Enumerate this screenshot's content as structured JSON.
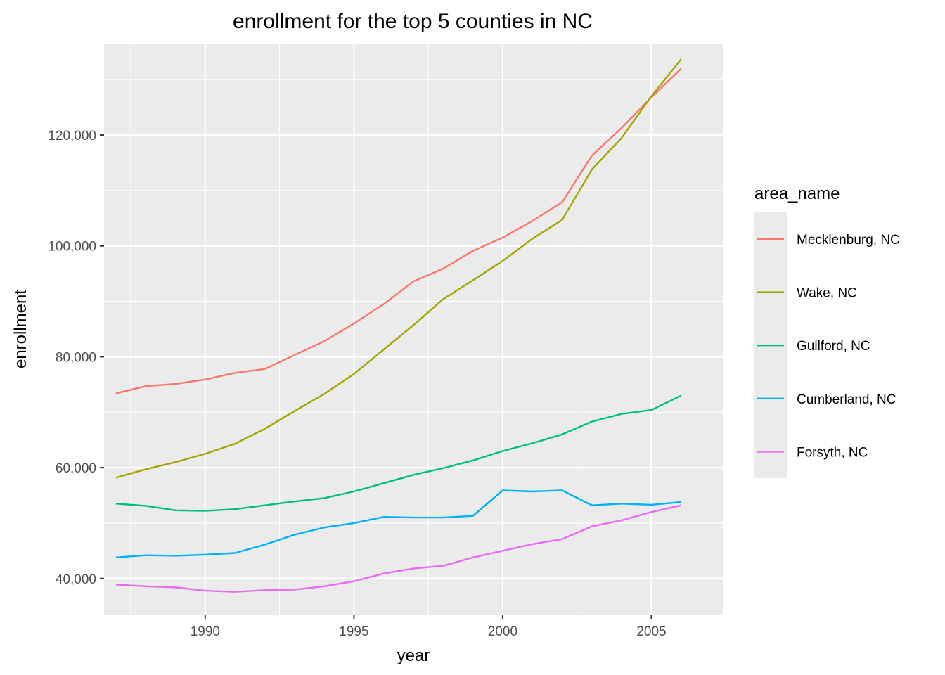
{
  "chart_data": {
    "type": "line",
    "title": "enrollment for the top 5 counties in NC",
    "xlabel": "year",
    "ylabel": "enrollment",
    "xlim": [
      1986.6,
      2007.4
    ],
    "ylim": [
      33500,
      136500
    ],
    "x_ticks": [
      1990,
      1995,
      2000,
      2005
    ],
    "x_tick_labels": [
      "1990",
      "1995",
      "2000",
      "2005"
    ],
    "y_ticks": [
      40000,
      60000,
      80000,
      100000,
      120000
    ],
    "y_tick_labels": [
      "40,000",
      "60,000",
      "80,000",
      "100,000",
      "120,000"
    ],
    "grid": true,
    "legend": {
      "title": "area_name",
      "position": "right"
    },
    "x": [
      1987,
      1988,
      1989,
      1990,
      1991,
      1992,
      1993,
      1994,
      1995,
      1996,
      1997,
      1998,
      1999,
      2000,
      2001,
      2002,
      2003,
      2004,
      2005,
      2006
    ],
    "series": [
      {
        "name": "Mecklenburg, NC",
        "color": "#F8766D",
        "values": [
          73400,
          74700,
          75100,
          75900,
          77100,
          77800,
          80300,
          82800,
          86000,
          89500,
          93600,
          95900,
          99100,
          101500,
          104500,
          107900,
          116300,
          121300,
          126800,
          132000
        ]
      },
      {
        "name": "Wake, NC",
        "color": "#A3A500",
        "values": [
          58200,
          59700,
          61000,
          62500,
          64300,
          67000,
          70200,
          73300,
          76900,
          81300,
          85700,
          90400,
          93800,
          97300,
          101300,
          104700,
          113800,
          119500,
          127000,
          133700
        ]
      },
      {
        "name": "Guilford, NC",
        "color": "#00BF7D",
        "values": [
          53500,
          53100,
          52300,
          52200,
          52500,
          53200,
          53900,
          54500,
          55700,
          57200,
          58700,
          59900,
          61300,
          63000,
          64400,
          66000,
          68300,
          69700,
          70400,
          73000
        ]
      },
      {
        "name": "Cumberland, NC",
        "color": "#00B0F6",
        "values": [
          43800,
          44200,
          44100,
          44300,
          44600,
          46100,
          47900,
          49200,
          50000,
          51100,
          51000,
          51000,
          51300,
          55900,
          55700,
          55900,
          53200,
          53500,
          53300,
          53800
        ]
      },
      {
        "name": "Forsyth, NC",
        "color": "#E76BF3",
        "values": [
          38900,
          38600,
          38400,
          37800,
          37600,
          37900,
          38000,
          38600,
          39500,
          40900,
          41800,
          42300,
          43800,
          45000,
          46200,
          47100,
          49400,
          50500,
          52000,
          53200
        ]
      }
    ]
  }
}
